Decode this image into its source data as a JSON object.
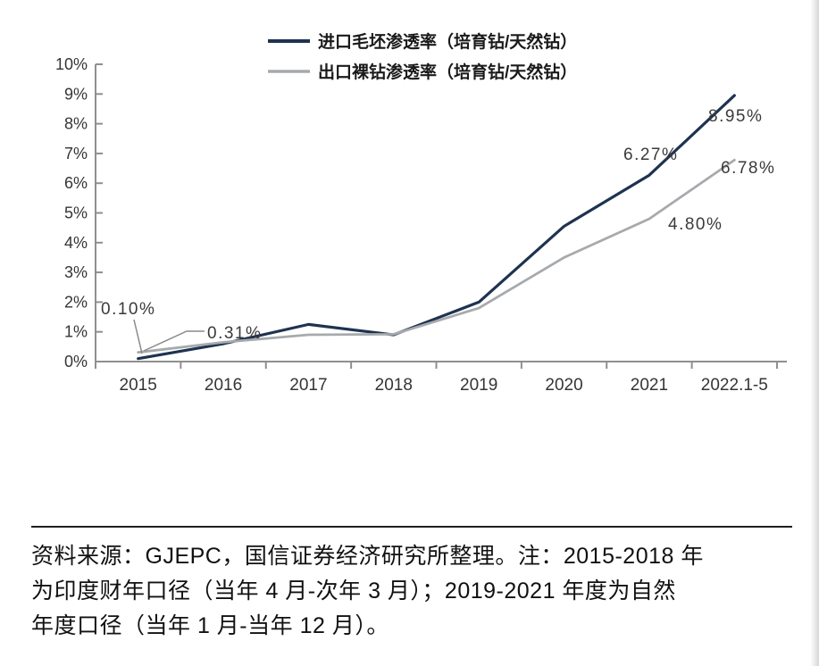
{
  "page": {
    "background": "#ffffff"
  },
  "chart_data": {
    "type": "line",
    "title": "",
    "xlabel": "",
    "ylabel": "",
    "categories": [
      "2015",
      "2016",
      "2017",
      "2018",
      "2019",
      "2020",
      "2021",
      "2022.1-5"
    ],
    "series": [
      {
        "name": "进口毛坯渗透率（培育钻/天然钻）",
        "color": "#1e3350",
        "values": [
          0.1,
          0.6,
          1.25,
          0.9,
          2.0,
          4.55,
          6.27,
          8.95
        ]
      },
      {
        "name": "出口裸钻渗透率（培育钻/天然钻）",
        "color": "#a7aaad",
        "values": [
          0.31,
          0.65,
          0.9,
          0.92,
          1.8,
          3.5,
          4.8,
          6.78
        ]
      }
    ],
    "ylim": [
      0,
      10
    ],
    "ytick_step": 1,
    "ytick_suffix": "%",
    "yticks": [
      "0%",
      "1%",
      "2%",
      "3%",
      "4%",
      "5%",
      "6%",
      "7%",
      "8%",
      "9%",
      "10%"
    ],
    "grid": false,
    "legend_position": "top-center",
    "annotations": [
      {
        "text": "0.10%",
        "series": 0,
        "category": "2015",
        "value": 0.1
      },
      {
        "text": "0.31%",
        "series": 1,
        "category": "2015",
        "value": 0.31
      },
      {
        "text": "6.27%",
        "series": 0,
        "category": "2021",
        "value": 6.27
      },
      {
        "text": "8.95%",
        "series": 0,
        "category": "2022.1-5",
        "value": 8.95
      },
      {
        "text": "4.80%",
        "series": 1,
        "category": "2021",
        "value": 4.8
      },
      {
        "text": "6.78%",
        "series": 1,
        "category": "2022.1-5",
        "value": 6.78
      }
    ]
  },
  "footer": {
    "lines": [
      "资料来源：GJEPC，国信证券经济研究所整理。注：2015-2018 年",
      "为印度财年口径（当年 4 月-次年 3 月）；2019-2021 年度为自然",
      "年度口径（当年 1 月-当年 12 月）。"
    ]
  },
  "colors": {
    "axis": "#8f8f8f",
    "tick_label": "#353535",
    "annotation": "#3a3a3a",
    "leader_line": "#8a8a8a",
    "footer_text": "#111111",
    "divider": "#1f1f1f"
  }
}
